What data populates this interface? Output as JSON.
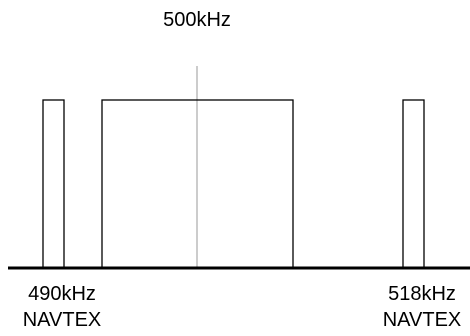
{
  "diagram": {
    "center_label": "500kHz",
    "left_label_freq": "490kHz",
    "left_label_service": "NAVTEX",
    "right_label_freq": "518kHz",
    "right_label_service": "NAVTEX"
  },
  "colors": {
    "stroke": "#000000",
    "center_line": "#9a9a9a",
    "background": "#ffffff"
  }
}
